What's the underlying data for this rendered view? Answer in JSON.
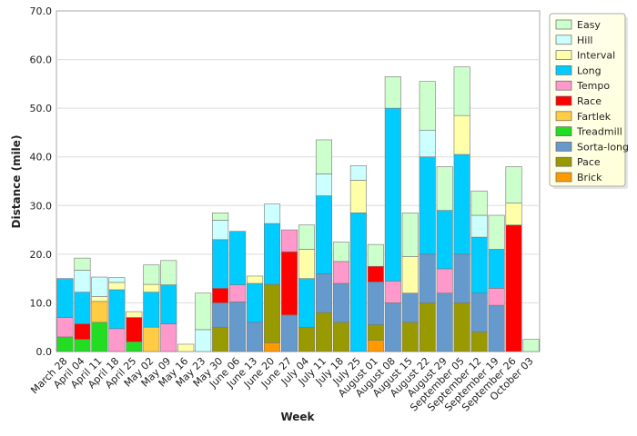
{
  "chart_data": {
    "type": "bar",
    "stacked": true,
    "xlabel": "Week",
    "ylabel": "Distance (mile)",
    "ylim": [
      0,
      70
    ],
    "yticks": [
      0,
      10,
      20,
      30,
      40,
      50,
      60,
      70
    ],
    "ytick_labels": [
      "0.0",
      "10.0",
      "20.0",
      "30.0",
      "40.0",
      "50.0",
      "60.0",
      "70.0"
    ],
    "grid": true,
    "legend_position": "right",
    "categories": [
      "March 28",
      "April 04",
      "April 11",
      "April 18",
      "April 25",
      "May 02",
      "May 09",
      "May 16",
      "May 23",
      "May 30",
      "June 06",
      "June 13",
      "June 20",
      "June 27",
      "July 04",
      "July 11",
      "July 18",
      "July 25",
      "August 01",
      "August 08",
      "August 15",
      "August 22",
      "August 29",
      "September 05",
      "September 12",
      "September 19",
      "September 26",
      "October 03"
    ],
    "series": [
      {
        "name": "Easy",
        "color": "#ccffcc",
        "values": [
          0,
          2.5,
          0,
          0,
          0,
          4,
          5,
          0,
          7.5,
          1.5,
          0,
          0,
          0,
          0,
          5,
          7,
          4,
          0,
          4.5,
          6.5,
          9,
          10,
          9,
          10,
          5,
          7,
          7.5,
          2.5
        ]
      },
      {
        "name": "Hill",
        "color": "#ccffff",
        "values": [
          0,
          4.5,
          4,
          1,
          0,
          0,
          0,
          0,
          4.5,
          4,
          0,
          0,
          4,
          0,
          0,
          4.5,
          0,
          3,
          0,
          0,
          0,
          5.5,
          0,
          0,
          4.5,
          0,
          0,
          0
        ]
      },
      {
        "name": "Interval",
        "color": "#ffffaa",
        "values": [
          0,
          0,
          1,
          1.5,
          1.2,
          1.6,
          0,
          1.5,
          0,
          0,
          0,
          1.5,
          0,
          0,
          6,
          0,
          0,
          6.7,
          0,
          0,
          7.5,
          0,
          0,
          8,
          0,
          0,
          4.5,
          0
        ]
      },
      {
        "name": "Long",
        "color": "#00ccff",
        "values": [
          8,
          6.5,
          0,
          8,
          0,
          7.2,
          8,
          0,
          0,
          10,
          11,
          8,
          12.5,
          0,
          10,
          16,
          0,
          28.5,
          0,
          35.5,
          0,
          20,
          12,
          20.5,
          11.5,
          8,
          0,
          0
        ]
      },
      {
        "name": "Tempo",
        "color": "#ff99cc",
        "values": [
          4,
          0,
          0,
          4.7,
          0,
          0,
          5.7,
          0,
          0,
          0,
          3.5,
          0,
          0,
          4.5,
          0,
          0,
          4.5,
          0,
          0,
          4.5,
          0,
          0,
          5,
          0,
          0,
          3.5,
          0,
          0
        ]
      },
      {
        "name": "Race",
        "color": "#ff0000",
        "values": [
          0,
          3.2,
          0,
          0,
          5,
          0,
          0,
          0,
          0,
          3,
          0,
          0,
          0,
          13,
          0,
          0,
          0,
          0,
          3.2,
          0,
          0,
          0,
          0,
          0,
          0,
          0,
          26,
          0
        ]
      },
      {
        "name": "Fartlek",
        "color": "#ffcc44",
        "values": [
          0,
          0,
          4.3,
          0,
          0,
          5,
          0,
          0,
          0,
          0,
          0,
          0,
          0,
          0,
          0,
          0,
          0,
          0,
          0,
          0,
          0,
          0,
          0,
          0,
          0,
          0,
          0,
          0
        ]
      },
      {
        "name": "Treadmill",
        "color": "#22dd22",
        "values": [
          3,
          2.5,
          6,
          0,
          2,
          0,
          0,
          0,
          0,
          0,
          0,
          0,
          0,
          0,
          0,
          0,
          0,
          0,
          0,
          0,
          0,
          0,
          0,
          0,
          0,
          0,
          0,
          0
        ]
      },
      {
        "name": "Sorta-long",
        "color": "#6699cc",
        "values": [
          0,
          0,
          0,
          0,
          0,
          0,
          0,
          0,
          0,
          5,
          10.2,
          6,
          0,
          7.5,
          0,
          8,
          8,
          0,
          8.8,
          10,
          6,
          10,
          12,
          10,
          8,
          9.5,
          0,
          0
        ]
      },
      {
        "name": "Pace",
        "color": "#999900",
        "values": [
          0,
          0,
          0,
          0,
          0,
          0,
          0,
          0,
          0,
          5,
          0,
          0,
          12,
          0,
          5,
          8,
          6,
          0,
          3.2,
          0,
          6,
          10,
          0,
          10,
          4,
          0,
          0,
          0
        ]
      },
      {
        "name": "Brick",
        "color": "#ff9900",
        "values": [
          0,
          0,
          0,
          0,
          0,
          0,
          0,
          0,
          0,
          0,
          0,
          0,
          1.8,
          0,
          0,
          0,
          0,
          0,
          2.3,
          0,
          0,
          0,
          0,
          0,
          0,
          0,
          0,
          0
        ]
      }
    ]
  }
}
